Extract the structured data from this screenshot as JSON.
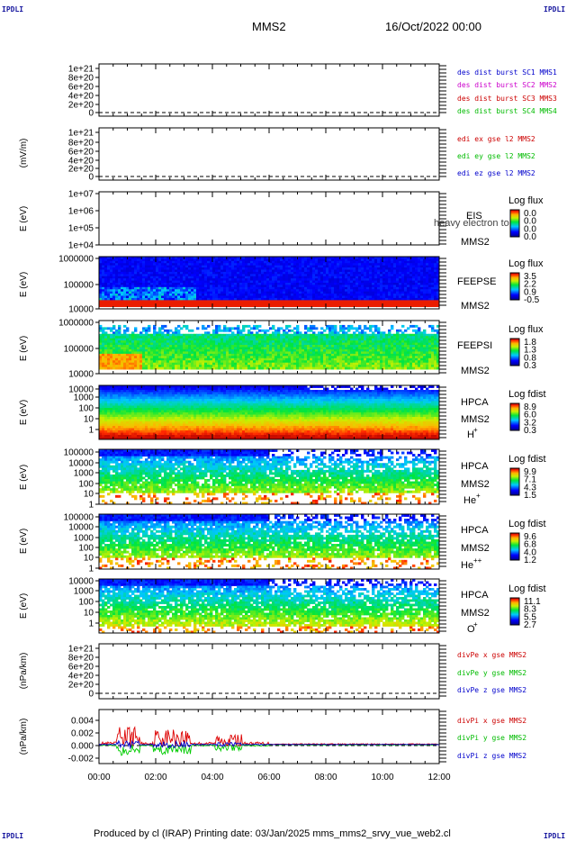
{
  "corners": {
    "tl": "IPDLI",
    "tr": "IPDLI",
    "bl": "IPDLI",
    "br": "IPDLI"
  },
  "header": {
    "spacecraft": "MMS2",
    "datetime": "16/Oct/2022 00:00"
  },
  "footer": {
    "text": "Produced by cl (IRAP)   Printing date: 03/Jan/2025   mms_mms2_srvy_vue_web2.cl"
  },
  "time_axis": {
    "ticks": [
      "00:00",
      "02:00",
      "04:00",
      "06:00",
      "08:00",
      "10:00",
      "12:00"
    ]
  },
  "chart_data": [
    {
      "type": "line",
      "id": "des-dist",
      "ylabel": "",
      "yticks": [
        "1e+21",
        "8e+20",
        "6e+20",
        "4e+20",
        "2e+20",
        "0"
      ],
      "legend": [
        {
          "text": "des dist burst SC1 MMS1",
          "color": "#0000cc"
        },
        {
          "text": "des dist burst SC2 MMS2",
          "color": "#cc00cc"
        },
        {
          "text": "des dist burst SC3 MMS3",
          "color": "#cc0000"
        },
        {
          "text": "des dist burst SC4 MMS4",
          "color": "#00bb00"
        }
      ],
      "ylim": [
        0,
        1e+21
      ],
      "zero_line": "dashed",
      "series": []
    },
    {
      "type": "line",
      "id": "edi",
      "ylabel": "(mV/m)",
      "yticks": [
        "1e+21",
        "8e+20",
        "6e+20",
        "4e+20",
        "2e+20",
        "0"
      ],
      "legend": [
        {
          "text": "edi ex gse l2 MMS2",
          "color": "#cc0000"
        },
        {
          "text": "edi ey gse l2 MMS2",
          "color": "#00bb00"
        },
        {
          "text": "edi ez gse l2 MMS2",
          "color": "#0000cc"
        }
      ],
      "ylim": [
        0,
        1e+21
      ],
      "zero_line": "dashed",
      "series": []
    },
    {
      "type": "heatmap",
      "id": "eis",
      "ylabel": "E (eV)",
      "yticks": [
        "1e+07",
        "1e+06",
        "1e+05",
        "1e+04"
      ],
      "scale": "log",
      "labels": [
        "EIS",
        "MMS2"
      ],
      "overlay_text": "heavy electron to",
      "colorbar": {
        "title": "Log flux",
        "ticks": [
          "0.0",
          "0.0",
          "0.0",
          "0.0"
        ]
      },
      "fill": "empty"
    },
    {
      "type": "heatmap",
      "id": "feepse",
      "ylabel": "E (eV)",
      "yticks": [
        "1000000",
        "100000",
        "10000"
      ],
      "scale": "log",
      "labels": [
        "FEEPSE",
        "MMS2"
      ],
      "colorbar": {
        "title": "Log flux",
        "ticks": [
          "3.5",
          "2.2",
          "0.9",
          "-0.5"
        ]
      },
      "fill": "electron"
    },
    {
      "type": "heatmap",
      "id": "feepsi",
      "ylabel": "E (eV)",
      "yticks": [
        "1000000",
        "100000",
        "10000"
      ],
      "scale": "log",
      "labels": [
        "FEEPSI",
        "MMS2"
      ],
      "colorbar": {
        "title": "Log flux",
        "ticks": [
          "1.8",
          "1.3",
          "0.8",
          "0.3"
        ]
      },
      "fill": "ion"
    },
    {
      "type": "heatmap",
      "id": "hpca-h",
      "ylabel": "E (eV)",
      "yticks": [
        "10000",
        "1000",
        "100",
        "10",
        "1"
      ],
      "scale": "log",
      "labels": [
        "HPCA",
        "MMS2",
        "H",
        "+"
      ],
      "colorbar": {
        "title": "Log fdist",
        "ticks": [
          "8.9",
          "6.0",
          "3.2",
          "0.3"
        ]
      },
      "fill": "hplus"
    },
    {
      "type": "heatmap",
      "id": "hpca-he",
      "ylabel": "E (eV)",
      "yticks": [
        "100000",
        "10000",
        "1000",
        "100",
        "10",
        "1"
      ],
      "scale": "log",
      "labels": [
        "HPCA",
        "MMS2",
        "He",
        "+"
      ],
      "colorbar": {
        "title": "Log fdist",
        "ticks": [
          "9.9",
          "7.1",
          "4.3",
          "1.5"
        ]
      },
      "fill": "heplus"
    },
    {
      "type": "heatmap",
      "id": "hpca-hepp",
      "ylabel": "E (eV)",
      "yticks": [
        "100000",
        "10000",
        "1000",
        "100",
        "10",
        "1"
      ],
      "scale": "log",
      "labels": [
        "HPCA",
        "MMS2",
        "He",
        "++"
      ],
      "colorbar": {
        "title": "Log fdist",
        "ticks": [
          "9.6",
          "6.8",
          "4.0",
          "1.2"
        ]
      },
      "fill": "hepp"
    },
    {
      "type": "heatmap",
      "id": "hpca-o",
      "ylabel": "E (eV)",
      "yticks": [
        "10000",
        "1000",
        "100",
        "10",
        "1"
      ],
      "scale": "log",
      "labels": [
        "HPCA",
        "MMS2",
        "O",
        "+"
      ],
      "colorbar": {
        "title": "Log fdist",
        "ticks": [
          "11.1",
          "8.3",
          "5.5",
          "2.7"
        ]
      },
      "fill": "oplus"
    },
    {
      "type": "line",
      "id": "divpe",
      "ylabel": "(nPa/km)",
      "yticks": [
        "1e+21",
        "8e+20",
        "6e+20",
        "4e+20",
        "2e+20",
        "0"
      ],
      "legend": [
        {
          "text": "divPe x gse MMS2",
          "color": "#cc0000"
        },
        {
          "text": "divPe y gse MMS2",
          "color": "#00bb00"
        },
        {
          "text": "divPe z gse MMS2",
          "color": "#0000cc"
        }
      ],
      "ylim": [
        0,
        1e+21
      ],
      "zero_line": "dashed",
      "series": []
    },
    {
      "type": "line",
      "id": "divpi",
      "ylabel": "(nPa/km)",
      "yticks": [
        "0.004",
        "0.002",
        "0.000",
        "-0.002"
      ],
      "legend": [
        {
          "text": "divPi x gse MMS2",
          "color": "#cc0000"
        },
        {
          "text": "divPi y gse MMS2",
          "color": "#00bb00"
        },
        {
          "text": "divPi z gse MMS2",
          "color": "#0000cc"
        }
      ],
      "ylim": [
        -0.003,
        0.0055
      ],
      "zero_line": "dashed",
      "series": [
        {
          "name": "divPi x gse MMS2",
          "color": "#dd0000"
        },
        {
          "name": "divPi y gse MMS2",
          "color": "#00cc00"
        },
        {
          "name": "divPi z gse MMS2",
          "color": "#0000cc"
        }
      ]
    }
  ]
}
